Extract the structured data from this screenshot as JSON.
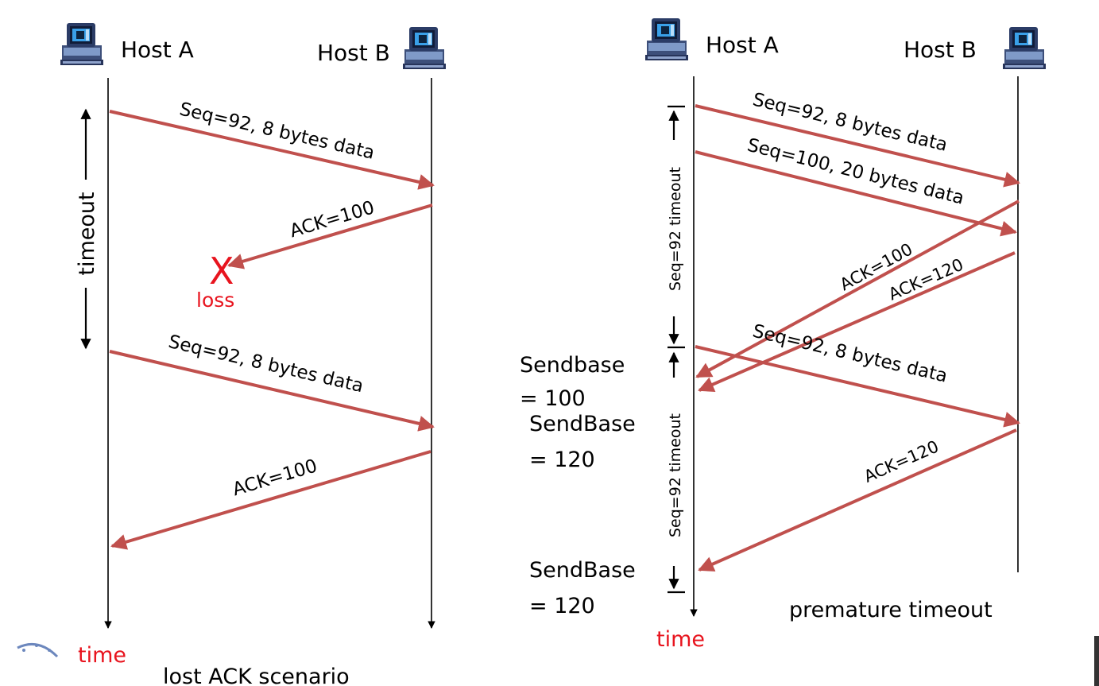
{
  "left": {
    "host_a": "Host A",
    "host_b": "Host B",
    "msgs": {
      "m1": "Seq=92, 8 bytes data",
      "m2": "ACK=100",
      "m3": "Seq=92, 8 bytes data",
      "m4": "ACK=100"
    },
    "loss_mark": "X",
    "loss_label": "loss",
    "timer_label": "timeout",
    "time_label": "time",
    "caption": "lost ACK scenario"
  },
  "right": {
    "host_a": "Host A",
    "host_b": "Host B",
    "msgs": {
      "m1": "Seq=92, 8 bytes data",
      "m2": "Seq=100, 20 bytes data",
      "m3": "ACK=100",
      "m4": "ACK=120",
      "m5": "Seq=92, 8 bytes data",
      "m6": "ACK=120"
    },
    "timer1_label": "Seq=92 timeout",
    "timer2_label": "Seq=92 timeout",
    "sendbase_notes": [
      [
        "Sendbase",
        "= 100"
      ],
      [
        "SendBase",
        "= 120"
      ],
      [
        "SendBase",
        "= 120"
      ]
    ],
    "time_label": "time",
    "caption": "premature timeout"
  },
  "colors": {
    "message_arrow": "#c0504d",
    "highlight": "#e8141e"
  }
}
